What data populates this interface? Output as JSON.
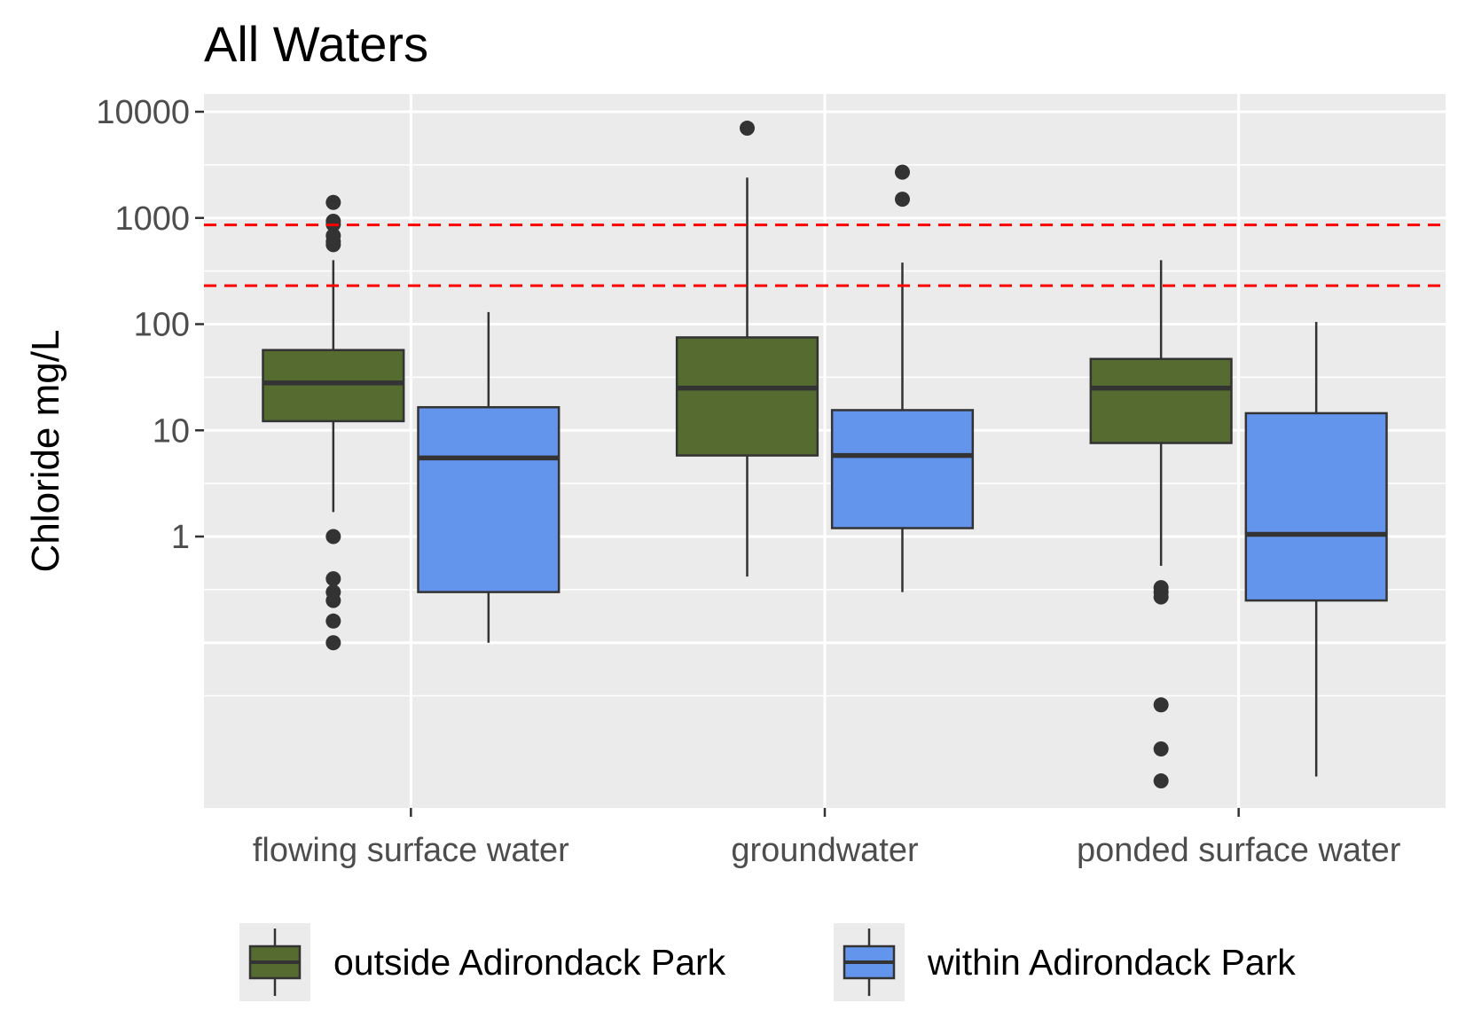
{
  "chart_data": {
    "type": "box",
    "title": "All Waters",
    "xlabel": "",
    "ylabel": "Chloride mg/L",
    "yscale": "log10",
    "ylim": [
      0.005,
      15000
    ],
    "yticks": [
      1,
      10,
      100,
      1000,
      10000
    ],
    "ytick_labels": [
      "1",
      "10",
      "100",
      "1000",
      "10000"
    ],
    "categories": [
      "flowing surface water",
      "groundwater",
      "ponded surface water"
    ],
    "reference_lines": [
      {
        "y": 860,
        "color": "#ff0000",
        "style": "dashed"
      },
      {
        "y": 230,
        "color": "#ff0000",
        "style": "dashed"
      }
    ],
    "legend_position": "bottom",
    "grid": true,
    "series": [
      {
        "name": "outside Adirondack Park",
        "color": "#556b2f",
        "boxes": [
          {
            "category": "flowing surface water",
            "whisker_low": 1.7,
            "q1": 12.2,
            "median": 28,
            "q3": 57,
            "whisker_high": 400,
            "outliers": [
              1400,
              930,
              870,
              680,
              600,
              560,
              1.0,
              0.4,
              0.3,
              0.25,
              0.16,
              0.1
            ]
          },
          {
            "category": "groundwater",
            "whisker_low": 0.42,
            "q1": 5.8,
            "median": 25,
            "q3": 75,
            "whisker_high": 2400,
            "outliers": [
              7000
            ]
          },
          {
            "category": "ponded surface water",
            "whisker_low": 0.53,
            "q1": 7.6,
            "median": 25,
            "q3": 47,
            "whisker_high": 400,
            "outliers": [
              0.33,
              0.3,
              0.27,
              0.026,
              0.01,
              0.005
            ]
          }
        ]
      },
      {
        "name": "within Adirondack Park",
        "color": "#6495ed",
        "boxes": [
          {
            "category": "flowing surface water",
            "whisker_low": 0.1,
            "q1": 0.3,
            "median": 5.5,
            "q3": 16.5,
            "whisker_high": 130,
            "outliers": []
          },
          {
            "category": "groundwater",
            "whisker_low": 0.3,
            "q1": 1.2,
            "median": 5.8,
            "q3": 15.5,
            "whisker_high": 380,
            "outliers": [
              2700,
              1500
            ]
          },
          {
            "category": "ponded surface water",
            "whisker_low": 0.0055,
            "q1": 0.25,
            "median": 1.05,
            "q3": 14.5,
            "whisker_high": 105,
            "outliers": []
          }
        ]
      }
    ]
  }
}
